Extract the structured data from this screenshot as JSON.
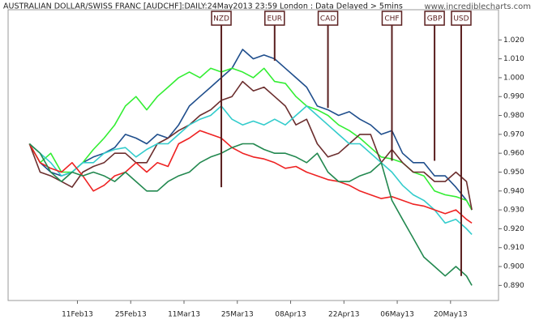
{
  "chart_data": {
    "type": "line",
    "title": "AUSTRALIAN DOLLAR/SWISS FRANC [AUDCHF]:DAILY:24May2013 23:59 London : Data Delayed > 5mins",
    "watermark": "www.incrediblecharts.com",
    "x": [
      0,
      2,
      4,
      6,
      8,
      10,
      12,
      14,
      16,
      18,
      20,
      22,
      24,
      26,
      28,
      30,
      32,
      34,
      36,
      38,
      40,
      42,
      44,
      46,
      48,
      50,
      52,
      54,
      56,
      58,
      60,
      62,
      64,
      66,
      68,
      70,
      72,
      74,
      76,
      78,
      80,
      82,
      83
    ],
    "xlim": [
      -4,
      88
    ],
    "xticks": [
      {
        "value": 9,
        "label": "11Feb13"
      },
      {
        "value": 19,
        "label": "25Feb13"
      },
      {
        "value": 29,
        "label": "11Mar13"
      },
      {
        "value": 39,
        "label": "25Mar13"
      },
      {
        "value": 49,
        "label": "08Apr13"
      },
      {
        "value": 59,
        "label": "22Apr13"
      },
      {
        "value": 69,
        "label": "06May13"
      },
      {
        "value": 79,
        "label": "20May13"
      }
    ],
    "ylim": [
      0.882,
      1.036
    ],
    "yticks": [
      {
        "value": 0.89,
        "label": "0.890"
      },
      {
        "value": 0.9,
        "label": "0.900"
      },
      {
        "value": 0.91,
        "label": "0.910"
      },
      {
        "value": 0.92,
        "label": "0.920"
      },
      {
        "value": 0.93,
        "label": "0.930"
      },
      {
        "value": 0.94,
        "label": "0.940"
      },
      {
        "value": 0.95,
        "label": "0.950"
      },
      {
        "value": 0.96,
        "label": "0.960"
      },
      {
        "value": 0.97,
        "label": "0.970"
      },
      {
        "value": 0.98,
        "label": "0.980"
      },
      {
        "value": 0.99,
        "label": "0.990"
      },
      {
        "value": 1.0,
        "label": "1.000"
      },
      {
        "value": 1.01,
        "label": "1.010"
      },
      {
        "value": 1.02,
        "label": "1.020"
      }
    ],
    "series": [
      {
        "color": "#1f4e8c",
        "values": [
          0.965,
          0.955,
          0.95,
          0.948,
          0.95,
          0.955,
          0.958,
          0.96,
          0.963,
          0.97,
          0.968,
          0.965,
          0.97,
          0.968,
          0.975,
          0.985,
          0.99,
          0.995,
          1.0,
          1.005,
          1.015,
          1.01,
          1.012,
          1.01,
          1.005,
          1.0,
          0.995,
          0.985,
          0.983,
          0.98,
          0.982,
          0.978,
          0.975,
          0.97,
          0.972,
          0.96,
          0.955,
          0.955,
          0.948,
          0.948,
          0.942,
          0.935,
          0.93
        ]
      },
      {
        "color": "#33ee33",
        "values": [
          0.965,
          0.955,
          0.96,
          0.95,
          0.95,
          0.955,
          0.962,
          0.968,
          0.975,
          0.985,
          0.99,
          0.983,
          0.99,
          0.995,
          1.0,
          1.003,
          1.0,
          1.005,
          1.003,
          1.005,
          1.003,
          1.0,
          1.005,
          0.998,
          0.997,
          0.99,
          0.985,
          0.983,
          0.98,
          0.975,
          0.972,
          0.968,
          0.963,
          0.958,
          0.957,
          0.955,
          0.95,
          0.948,
          0.94,
          0.938,
          0.937,
          0.935,
          0.93
        ]
      },
      {
        "color": "#6b2e2e",
        "values": [
          0.965,
          0.95,
          0.948,
          0.945,
          0.942,
          0.95,
          0.953,
          0.955,
          0.96,
          0.96,
          0.955,
          0.955,
          0.965,
          0.968,
          0.972,
          0.975,
          0.98,
          0.983,
          0.988,
          0.99,
          0.998,
          0.993,
          0.995,
          0.99,
          0.985,
          0.975,
          0.978,
          0.965,
          0.958,
          0.96,
          0.965,
          0.97,
          0.97,
          0.955,
          0.962,
          0.955,
          0.95,
          0.95,
          0.945,
          0.945,
          0.95,
          0.945,
          0.93
        ]
      },
      {
        "color": "#33cccc",
        "values": [
          0.965,
          0.96,
          0.955,
          0.948,
          0.95,
          0.955,
          0.955,
          0.96,
          0.962,
          0.963,
          0.958,
          0.962,
          0.965,
          0.965,
          0.97,
          0.975,
          0.978,
          0.98,
          0.985,
          0.978,
          0.975,
          0.977,
          0.975,
          0.978,
          0.975,
          0.98,
          0.985,
          0.98,
          0.975,
          0.97,
          0.965,
          0.965,
          0.96,
          0.955,
          0.95,
          0.943,
          0.938,
          0.935,
          0.93,
          0.923,
          0.925,
          0.92,
          0.917
        ]
      },
      {
        "color": "#ee2222",
        "values": [
          0.965,
          0.955,
          0.952,
          0.95,
          0.955,
          0.948,
          0.94,
          0.943,
          0.948,
          0.95,
          0.955,
          0.95,
          0.955,
          0.953,
          0.965,
          0.968,
          0.972,
          0.97,
          0.968,
          0.963,
          0.96,
          0.958,
          0.957,
          0.955,
          0.952,
          0.953,
          0.95,
          0.948,
          0.946,
          0.945,
          0.943,
          0.94,
          0.938,
          0.936,
          0.937,
          0.935,
          0.933,
          0.932,
          0.93,
          0.928,
          0.93,
          0.925,
          0.923
        ]
      },
      {
        "color": "#22884f",
        "values": [
          0.965,
          0.96,
          0.95,
          0.945,
          0.95,
          0.948,
          0.95,
          0.948,
          0.945,
          0.95,
          0.945,
          0.94,
          0.94,
          0.945,
          0.948,
          0.95,
          0.955,
          0.958,
          0.96,
          0.963,
          0.965,
          0.965,
          0.962,
          0.96,
          0.96,
          0.958,
          0.955,
          0.96,
          0.95,
          0.945,
          0.945,
          0.948,
          0.95,
          0.955,
          0.935,
          0.925,
          0.915,
          0.905,
          0.9,
          0.895,
          0.9,
          0.895,
          0.89
        ]
      }
    ],
    "annotations": [
      {
        "text": "NZD",
        "x": 36,
        "value": 0.942
      },
      {
        "text": "EUR",
        "x": 46,
        "value": 1.009
      },
      {
        "text": "CAD",
        "x": 56,
        "value": 0.984
      },
      {
        "text": "CHF",
        "x": 68,
        "value": 0.956
      },
      {
        "text": "GBP",
        "x": 76,
        "value": 0.956
      },
      {
        "text": "USD",
        "x": 81,
        "value": 0.895
      }
    ]
  }
}
